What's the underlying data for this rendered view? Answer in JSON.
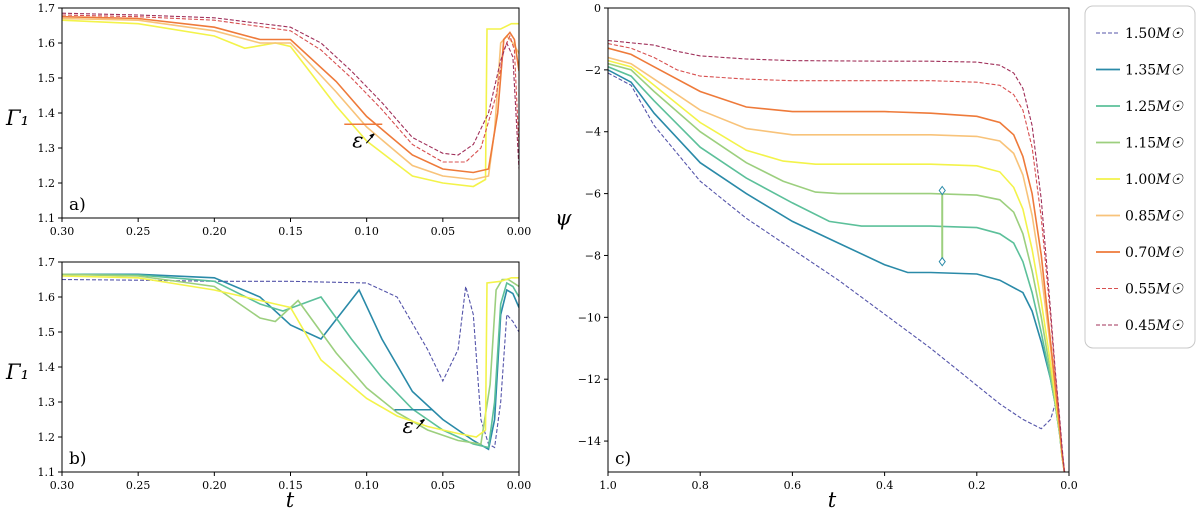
{
  "chart_data": [
    {
      "id": "a",
      "type": "line",
      "panel_label": "a)",
      "ylabel": "Γ₁",
      "xlabel": "",
      "xlim": [
        0.3,
        0.0
      ],
      "ylim": [
        1.1,
        1.7
      ],
      "xticks": [
        "0.30",
        "0.25",
        "0.20",
        "0.15",
        "0.10",
        "0.05",
        "0.00"
      ],
      "xtick_values": [
        0.3,
        0.25,
        0.2,
        0.15,
        0.1,
        0.05,
        0.0
      ],
      "yticks": [
        "1.1",
        "1.2",
        "1.3",
        "1.4",
        "1.5",
        "1.6",
        "1.7"
      ],
      "ytick_values": [
        1.1,
        1.2,
        1.3,
        1.4,
        1.5,
        1.6,
        1.7
      ],
      "annotation": {
        "text": "ε",
        "x": 0.095,
        "y": 1.325
      },
      "series": [
        {
          "name": "1.00",
          "color": "#f3f34a",
          "dash": false,
          "x": [
            0.3,
            0.25,
            0.2,
            0.18,
            0.16,
            0.15,
            0.12,
            0.1,
            0.07,
            0.05,
            0.03,
            0.022,
            0.021,
            0.012,
            0.005,
            0.0
          ],
          "y": [
            1.665,
            1.655,
            1.62,
            1.585,
            1.6,
            1.59,
            1.42,
            1.32,
            1.22,
            1.2,
            1.19,
            1.21,
            1.64,
            1.64,
            1.655,
            1.655
          ]
        },
        {
          "name": "0.85",
          "color": "#f8c37a",
          "dash": false,
          "x": [
            0.3,
            0.25,
            0.2,
            0.17,
            0.15,
            0.12,
            0.1,
            0.07,
            0.05,
            0.03,
            0.02,
            0.016,
            0.012,
            0.008,
            0.004,
            0.0
          ],
          "y": [
            1.67,
            1.665,
            1.635,
            1.6,
            1.6,
            1.46,
            1.36,
            1.25,
            1.22,
            1.21,
            1.22,
            1.35,
            1.6,
            1.62,
            1.6,
            1.57
          ]
        },
        {
          "name": "0.70",
          "color": "#ee7a3a",
          "dash": false,
          "x": [
            0.3,
            0.25,
            0.2,
            0.17,
            0.15,
            0.12,
            0.1,
            0.07,
            0.05,
            0.03,
            0.02,
            0.014,
            0.01,
            0.006,
            0.003,
            0.0
          ],
          "y": [
            1.675,
            1.67,
            1.645,
            1.61,
            1.61,
            1.49,
            1.39,
            1.28,
            1.24,
            1.23,
            1.24,
            1.4,
            1.61,
            1.63,
            1.61,
            1.52
          ]
        },
        {
          "name": "0.55",
          "color": "#d85050",
          "dash": true,
          "x": [
            0.3,
            0.25,
            0.2,
            0.15,
            0.13,
            0.11,
            0.09,
            0.07,
            0.05,
            0.035,
            0.025,
            0.015,
            0.01,
            0.006,
            0.003,
            0.0
          ],
          "y": [
            1.68,
            1.675,
            1.665,
            1.635,
            1.58,
            1.5,
            1.41,
            1.31,
            1.26,
            1.26,
            1.3,
            1.45,
            1.58,
            1.62,
            1.58,
            1.3
          ]
        },
        {
          "name": "0.45",
          "color": "#a0305a",
          "dash": true,
          "x": [
            0.3,
            0.25,
            0.2,
            0.15,
            0.13,
            0.11,
            0.09,
            0.07,
            0.05,
            0.04,
            0.03,
            0.02,
            0.012,
            0.008,
            0.004,
            0.0
          ],
          "y": [
            1.685,
            1.68,
            1.672,
            1.645,
            1.6,
            1.52,
            1.43,
            1.33,
            1.285,
            1.28,
            1.31,
            1.4,
            1.55,
            1.6,
            1.56,
            1.24
          ]
        }
      ]
    },
    {
      "id": "b",
      "type": "line",
      "panel_label": "b)",
      "ylabel": "Γ₁",
      "xlabel": "t",
      "xlim": [
        0.3,
        0.0
      ],
      "ylim": [
        1.1,
        1.7
      ],
      "xticks": [
        "0.30",
        "0.25",
        "0.20",
        "0.15",
        "0.10",
        "0.05",
        "0.00"
      ],
      "xtick_values": [
        0.3,
        0.25,
        0.2,
        0.15,
        0.1,
        0.05,
        0.0
      ],
      "yticks": [
        "1.1",
        "1.2",
        "1.3",
        "1.4",
        "1.5",
        "1.6",
        "1.7"
      ],
      "ytick_values": [
        1.1,
        1.2,
        1.3,
        1.4,
        1.5,
        1.6,
        1.7
      ],
      "annotation": {
        "text": "ε",
        "x": 0.062,
        "y": 1.235
      },
      "series": [
        {
          "name": "1.50",
          "color": "#5555aa",
          "dash": true,
          "x": [
            0.3,
            0.25,
            0.2,
            0.15,
            0.1,
            0.08,
            0.06,
            0.05,
            0.04,
            0.035,
            0.03,
            0.025,
            0.02,
            0.016,
            0.012,
            0.008,
            0.004,
            0.0
          ],
          "y": [
            1.65,
            1.648,
            1.645,
            1.645,
            1.64,
            1.6,
            1.45,
            1.36,
            1.45,
            1.63,
            1.55,
            1.25,
            1.18,
            1.17,
            1.3,
            1.55,
            1.53,
            1.5
          ]
        },
        {
          "name": "1.35",
          "color": "#2a8aa8",
          "dash": false,
          "x": [
            0.3,
            0.25,
            0.2,
            0.17,
            0.15,
            0.13,
            0.105,
            0.09,
            0.07,
            0.05,
            0.03,
            0.02,
            0.016,
            0.012,
            0.008,
            0.004,
            0.0
          ],
          "y": [
            1.665,
            1.665,
            1.655,
            1.6,
            1.52,
            1.48,
            1.62,
            1.48,
            1.33,
            1.25,
            1.19,
            1.165,
            1.25,
            1.55,
            1.62,
            1.61,
            1.57
          ]
        },
        {
          "name": "1.25",
          "color": "#5cc09a",
          "dash": false,
          "x": [
            0.3,
            0.25,
            0.2,
            0.17,
            0.155,
            0.13,
            0.11,
            0.09,
            0.07,
            0.05,
            0.03,
            0.02,
            0.016,
            0.012,
            0.008,
            0.004,
            0.0
          ],
          "y": [
            1.665,
            1.663,
            1.645,
            1.58,
            1.56,
            1.6,
            1.48,
            1.37,
            1.28,
            1.22,
            1.18,
            1.17,
            1.3,
            1.58,
            1.64,
            1.63,
            1.6
          ]
        },
        {
          "name": "1.15",
          "color": "#9ccf7e",
          "dash": false,
          "x": [
            0.3,
            0.25,
            0.2,
            0.17,
            0.16,
            0.145,
            0.12,
            0.1,
            0.08,
            0.06,
            0.04,
            0.025,
            0.019,
            0.015,
            0.011,
            0.007,
            0.0
          ],
          "y": [
            1.665,
            1.66,
            1.63,
            1.54,
            1.53,
            1.59,
            1.44,
            1.34,
            1.27,
            1.22,
            1.19,
            1.18,
            1.35,
            1.62,
            1.65,
            1.65,
            1.63
          ]
        },
        {
          "name": "1.00",
          "color": "#f3f34a",
          "dash": false,
          "x": [
            0.3,
            0.25,
            0.2,
            0.16,
            0.15,
            0.13,
            0.1,
            0.08,
            0.06,
            0.04,
            0.028,
            0.022,
            0.021,
            0.012,
            0.005,
            0.0
          ],
          "y": [
            1.66,
            1.655,
            1.62,
            1.58,
            1.57,
            1.42,
            1.31,
            1.26,
            1.23,
            1.21,
            1.2,
            1.22,
            1.64,
            1.645,
            1.655,
            1.655
          ]
        }
      ]
    },
    {
      "id": "c",
      "type": "line",
      "panel_label": "c)",
      "ylabel": "ψ",
      "xlabel": "t",
      "xlim": [
        1.0,
        0.0
      ],
      "ylim": [
        -15,
        0
      ],
      "xticks": [
        "1.0",
        "0.8",
        "0.6",
        "0.4",
        "0.2",
        "0.0"
      ],
      "xtick_values": [
        1.0,
        0.8,
        0.6,
        0.4,
        0.2,
        0.0
      ],
      "yticks": [
        "0",
        "−2",
        "−4",
        "−6",
        "−8",
        "−10",
        "−12",
        "−14"
      ],
      "ytick_values": [
        0,
        -2,
        -4,
        -6,
        -8,
        -10,
        -12,
        -14
      ],
      "marker_line": {
        "x": 0.275,
        "y_top": -5.9,
        "y_bottom": -8.2
      },
      "series": [
        {
          "name": "1.50",
          "color": "#5555aa",
          "dash": true,
          "x": [
            1.0,
            0.95,
            0.9,
            0.8,
            0.7,
            0.6,
            0.5,
            0.4,
            0.3,
            0.2,
            0.15,
            0.1,
            0.06,
            0.04,
            0.03,
            0.02,
            0.015,
            0.01
          ],
          "y": [
            -2.1,
            -2.5,
            -3.8,
            -5.6,
            -6.8,
            -7.8,
            -8.8,
            -9.9,
            -11.0,
            -12.2,
            -12.8,
            -13.3,
            -13.6,
            -13.3,
            -12.8,
            -13.5,
            -14.5,
            -15.0
          ]
        },
        {
          "name": "1.35",
          "color": "#2a8aa8",
          "dash": false,
          "x": [
            1.0,
            0.95,
            0.9,
            0.8,
            0.7,
            0.6,
            0.5,
            0.4,
            0.35,
            0.3,
            0.2,
            0.15,
            0.1,
            0.08,
            0.06,
            0.04,
            0.03,
            0.02,
            0.015,
            0.01
          ],
          "y": [
            -2.0,
            -2.4,
            -3.4,
            -5.0,
            -6.0,
            -6.9,
            -7.6,
            -8.3,
            -8.55,
            -8.55,
            -8.6,
            -8.8,
            -9.2,
            -9.8,
            -10.8,
            -12.0,
            -12.8,
            -13.8,
            -14.5,
            -15.0
          ]
        },
        {
          "name": "1.25",
          "color": "#5cc09a",
          "dash": false,
          "x": [
            1.0,
            0.95,
            0.9,
            0.8,
            0.7,
            0.6,
            0.52,
            0.45,
            0.3,
            0.2,
            0.15,
            0.12,
            0.1,
            0.08,
            0.06,
            0.04,
            0.03,
            0.02,
            0.015,
            0.01
          ],
          "y": [
            -1.9,
            -2.2,
            -3.0,
            -4.5,
            -5.5,
            -6.3,
            -6.9,
            -7.05,
            -7.05,
            -7.1,
            -7.3,
            -7.6,
            -8.2,
            -9.2,
            -10.5,
            -12.0,
            -12.8,
            -13.8,
            -14.5,
            -15.0
          ]
        },
        {
          "name": "1.15",
          "color": "#9ccf7e",
          "dash": false,
          "x": [
            1.0,
            0.95,
            0.9,
            0.8,
            0.7,
            0.62,
            0.55,
            0.5,
            0.3,
            0.2,
            0.15,
            0.12,
            0.1,
            0.08,
            0.06,
            0.04,
            0.03,
            0.02,
            0.015,
            0.01
          ],
          "y": [
            -1.8,
            -2.0,
            -2.7,
            -4.0,
            -5.0,
            -5.6,
            -5.95,
            -6.0,
            -6.0,
            -6.05,
            -6.2,
            -6.6,
            -7.3,
            -8.5,
            -10.0,
            -11.8,
            -12.8,
            -13.8,
            -14.5,
            -15.0
          ]
        },
        {
          "name": "1.00",
          "color": "#f3f34a",
          "dash": false,
          "x": [
            1.0,
            0.95,
            0.9,
            0.8,
            0.7,
            0.62,
            0.55,
            0.3,
            0.2,
            0.15,
            0.12,
            0.1,
            0.08,
            0.06,
            0.04,
            0.03,
            0.02,
            0.015,
            0.01
          ],
          "y": [
            -1.7,
            -1.9,
            -2.5,
            -3.7,
            -4.6,
            -4.95,
            -5.05,
            -5.05,
            -5.1,
            -5.3,
            -5.8,
            -6.5,
            -7.8,
            -9.5,
            -11.5,
            -12.6,
            -13.7,
            -14.5,
            -15.0
          ]
        },
        {
          "name": "0.85",
          "color": "#f8c37a",
          "dash": false,
          "x": [
            1.0,
            0.95,
            0.9,
            0.8,
            0.7,
            0.6,
            0.3,
            0.2,
            0.15,
            0.12,
            0.1,
            0.08,
            0.06,
            0.04,
            0.03,
            0.02,
            0.015,
            0.01
          ],
          "y": [
            -1.6,
            -1.8,
            -2.3,
            -3.3,
            -3.9,
            -4.1,
            -4.1,
            -4.15,
            -4.3,
            -4.7,
            -5.4,
            -6.7,
            -8.6,
            -11.0,
            -12.3,
            -13.6,
            -14.4,
            -15.0
          ]
        },
        {
          "name": "0.70",
          "color": "#ee7a3a",
          "dash": false,
          "x": [
            1.0,
            0.95,
            0.9,
            0.8,
            0.7,
            0.6,
            0.4,
            0.3,
            0.2,
            0.15,
            0.12,
            0.1,
            0.08,
            0.06,
            0.04,
            0.03,
            0.02,
            0.015,
            0.01
          ],
          "y": [
            -1.3,
            -1.5,
            -1.9,
            -2.7,
            -3.2,
            -3.35,
            -3.35,
            -3.4,
            -3.5,
            -3.7,
            -4.1,
            -4.8,
            -6.0,
            -8.0,
            -10.8,
            -12.2,
            -13.6,
            -14.4,
            -15.0
          ]
        },
        {
          "name": "0.55",
          "color": "#d85050",
          "dash": true,
          "x": [
            1.0,
            0.95,
            0.9,
            0.85,
            0.8,
            0.7,
            0.6,
            0.4,
            0.3,
            0.2,
            0.15,
            0.12,
            0.1,
            0.08,
            0.06,
            0.04,
            0.03,
            0.02,
            0.015,
            0.01
          ],
          "y": [
            -1.15,
            -1.3,
            -1.6,
            -2.0,
            -2.2,
            -2.3,
            -2.35,
            -2.35,
            -2.35,
            -2.4,
            -2.5,
            -2.8,
            -3.3,
            -4.5,
            -6.8,
            -10.0,
            -11.8,
            -13.4,
            -14.3,
            -15.0
          ]
        },
        {
          "name": "0.45",
          "color": "#a0305a",
          "dash": true,
          "x": [
            1.0,
            0.9,
            0.85,
            0.8,
            0.7,
            0.6,
            0.4,
            0.3,
            0.2,
            0.15,
            0.12,
            0.1,
            0.08,
            0.06,
            0.04,
            0.03,
            0.02,
            0.015,
            0.01
          ],
          "y": [
            -1.05,
            -1.2,
            -1.4,
            -1.55,
            -1.65,
            -1.7,
            -1.72,
            -1.72,
            -1.75,
            -1.85,
            -2.1,
            -2.6,
            -3.8,
            -6.2,
            -9.8,
            -11.7,
            -13.3,
            -14.2,
            -15.0
          ]
        }
      ]
    }
  ],
  "legend": {
    "suffix": "M☉",
    "entries": [
      {
        "label": "1.50",
        "color": "#5555aa",
        "dash": true
      },
      {
        "label": "1.35",
        "color": "#2a8aa8",
        "dash": false
      },
      {
        "label": "1.25",
        "color": "#5cc09a",
        "dash": false
      },
      {
        "label": "1.15",
        "color": "#9ccf7e",
        "dash": false
      },
      {
        "label": "1.00",
        "color": "#f3f34a",
        "dash": false
      },
      {
        "label": "0.85",
        "color": "#f8c37a",
        "dash": false
      },
      {
        "label": "0.70",
        "color": "#ee7a3a",
        "dash": false
      },
      {
        "label": "0.55",
        "color": "#d85050",
        "dash": true
      },
      {
        "label": "0.45",
        "color": "#a0305a",
        "dash": true
      }
    ]
  }
}
